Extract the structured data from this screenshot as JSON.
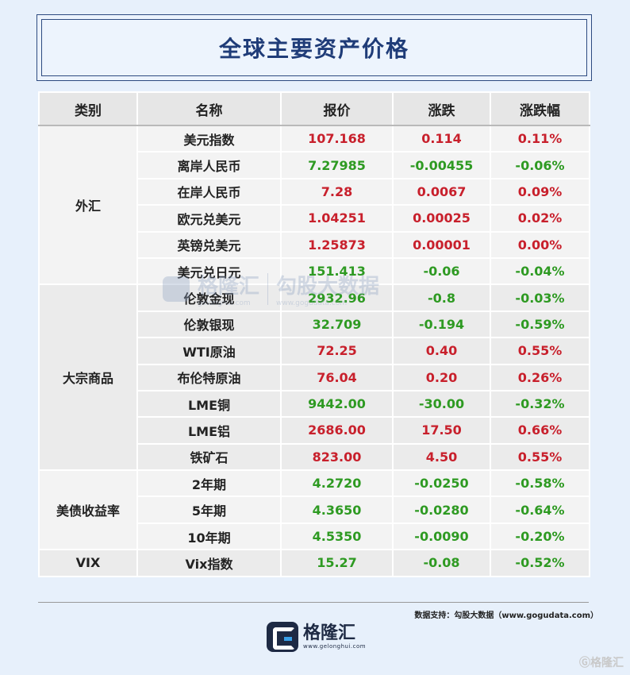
{
  "title": "全球主要资产价格",
  "table": {
    "headers": [
      "类别",
      "名称",
      "报价",
      "涨跌",
      "涨跌幅"
    ],
    "groups": [
      {
        "category": "外汇",
        "rows": [
          {
            "name": "美元指数",
            "price": "107.168",
            "change": "0.114",
            "pct": "0.11%",
            "dir": "up"
          },
          {
            "name": "离岸人民币",
            "price": "7.27985",
            "change": "-0.00455",
            "pct": "-0.06%",
            "dir": "down"
          },
          {
            "name": "在岸人民币",
            "price": "7.28",
            "change": "0.0067",
            "pct": "0.09%",
            "dir": "up"
          },
          {
            "name": "欧元兑美元",
            "price": "1.04251",
            "change": "0.00025",
            "pct": "0.02%",
            "dir": "up"
          },
          {
            "name": "英镑兑美元",
            "price": "1.25873",
            "change": "0.00001",
            "pct": "0.00%",
            "dir": "up"
          },
          {
            "name": "美元兑日元",
            "price": "151.413",
            "change": "-0.06",
            "pct": "-0.04%",
            "dir": "down"
          }
        ]
      },
      {
        "category": "大宗商品",
        "rows": [
          {
            "name": "伦敦金现",
            "price": "2932.96",
            "change": "-0.8",
            "pct": "-0.03%",
            "dir": "down"
          },
          {
            "name": "伦敦银现",
            "price": "32.709",
            "change": "-0.194",
            "pct": "-0.59%",
            "dir": "down"
          },
          {
            "name": "WTI原油",
            "price": "72.25",
            "change": "0.40",
            "pct": "0.55%",
            "dir": "up"
          },
          {
            "name": "布伦特原油",
            "price": "76.04",
            "change": "0.20",
            "pct": "0.26%",
            "dir": "up"
          },
          {
            "name": "LME铜",
            "price": "9442.00",
            "change": "-30.00",
            "pct": "-0.32%",
            "dir": "down"
          },
          {
            "name": "LME铝",
            "price": "2686.00",
            "change": "17.50",
            "pct": "0.66%",
            "dir": "up"
          },
          {
            "name": "铁矿石",
            "price": "823.00",
            "change": "4.50",
            "pct": "0.55%",
            "dir": "up"
          }
        ]
      },
      {
        "category": "美债收益率",
        "rows": [
          {
            "name": "2年期",
            "price": "4.2720",
            "change": "-0.0250",
            "pct": "-0.58%",
            "dir": "down"
          },
          {
            "name": "5年期",
            "price": "4.3650",
            "change": "-0.0280",
            "pct": "-0.64%",
            "dir": "down"
          },
          {
            "name": "10年期",
            "price": "4.5350",
            "change": "-0.0090",
            "pct": "-0.20%",
            "dir": "down"
          }
        ]
      },
      {
        "category": "VIX",
        "rows": [
          {
            "name": "Vix指数",
            "price": "15.27",
            "change": "-0.08",
            "pct": "-0.52%",
            "dir": "down"
          }
        ]
      }
    ]
  },
  "source": "数据支持：勾股大数据（www.gogudata.com）",
  "logo": {
    "cn": "格隆汇",
    "en": "www.gelonghui.com"
  },
  "watermark": {
    "brand": "格隆汇",
    "brand_url": "gelonghui.com",
    "partner": "勾股大数据",
    "partner_url": "www.gogudata.com"
  },
  "corner_mark": "Ⓖ格隆汇",
  "colors": {
    "up": "#c8202c",
    "down": "#2e9a22",
    "title": "#1f3c78",
    "background": "#e7f0fb"
  }
}
